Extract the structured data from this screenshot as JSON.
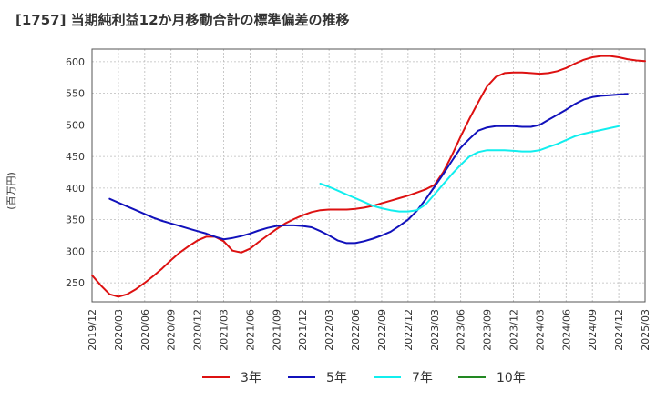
{
  "chart_data": {
    "type": "line",
    "title": "[1757]  当期純利益12か月移動合計の標準偏差の推移",
    "ylabel": "(百万円)",
    "xlabel": "",
    "ylim": [
      220,
      620
    ],
    "yticks": [
      250,
      300,
      350,
      400,
      450,
      500,
      550,
      600
    ],
    "x_range": [
      "2019-12",
      "2025-03"
    ],
    "xticks": [
      "2019/12",
      "2020/03",
      "2020/06",
      "2020/09",
      "2020/12",
      "2021/03",
      "2021/06",
      "2021/09",
      "2021/12",
      "2022/03",
      "2022/06",
      "2022/09",
      "2022/12",
      "2023/03",
      "2023/06",
      "2023/09",
      "2023/12",
      "2024/03",
      "2024/06",
      "2024/09",
      "2024/12",
      "2025/03"
    ],
    "grid": true,
    "legend_position": "bottom",
    "series": [
      {
        "name": "3年",
        "color": "#dd1111",
        "start": "2019-12",
        "values": [
          262,
          246,
          232,
          228,
          232,
          240,
          250,
          261,
          273,
          286,
          298,
          308,
          317,
          323,
          323,
          316,
          301,
          298,
          304,
          315,
          325,
          335,
          344,
          351,
          357,
          362,
          365,
          366,
          366,
          366,
          367,
          369,
          372,
          376,
          380,
          384,
          388,
          393,
          398,
          405,
          425,
          452,
          482,
          510,
          536,
          561,
          576,
          582,
          583,
          583,
          582,
          581,
          582,
          585,
          590,
          597,
          603,
          607,
          609,
          609,
          607,
          604,
          602,
          601
        ]
      },
      {
        "name": "5年",
        "color": "#1111bb",
        "start": "2020-02",
        "values": [
          383,
          377,
          371,
          365,
          359,
          353,
          348,
          344,
          340,
          336,
          332,
          328,
          323,
          319,
          321,
          324,
          328,
          333,
          337,
          340,
          341,
          341,
          340,
          338,
          332,
          325,
          317,
          313,
          313,
          316,
          320,
          325,
          331,
          340,
          350,
          364,
          382,
          402,
          422,
          443,
          464,
          478,
          491,
          496,
          498,
          498,
          498,
          497,
          497,
          500,
          508,
          516,
          524,
          533,
          540,
          544,
          546,
          547,
          548,
          549
        ]
      },
      {
        "name": "7年",
        "color": "#11eeee",
        "start": "2022-02",
        "values": [
          407,
          402,
          396,
          390,
          384,
          378,
          372,
          368,
          365,
          363,
          363,
          365,
          374,
          390,
          406,
          422,
          437,
          450,
          457,
          460,
          460,
          460,
          459,
          458,
          458,
          460,
          465,
          470,
          476,
          482,
          486,
          489,
          492,
          495,
          498
        ]
      },
      {
        "name": "10年",
        "color": "#228822",
        "start": "2019-12",
        "values": []
      }
    ]
  }
}
